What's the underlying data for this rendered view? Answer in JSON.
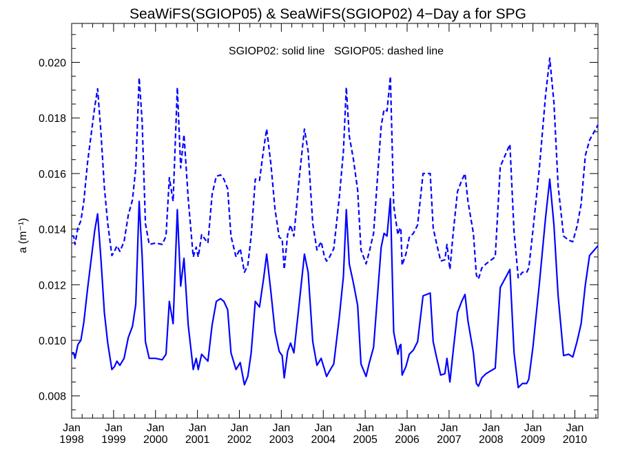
{
  "chart_data": {
    "type": "line",
    "title": "SeaWiFS(SGIOP05) & SeaWiFS(SGIOP02) 4−Day a for SPG",
    "ylabel": "a (m⁻¹)",
    "annotation": "SGIOP02: solid line   SGIOP05: dashed line",
    "xlim": [
      1998.0,
      2010.55
    ],
    "ylim": [
      0.0072,
      0.0214
    ],
    "y_ticks": [
      0.008,
      0.01,
      0.012,
      0.014,
      0.016,
      0.018,
      0.02
    ],
    "y_tick_labels": [
      "0.008",
      "0.010",
      "0.012",
      "0.014",
      "0.016",
      "0.018",
      "0.020"
    ],
    "x_ticks": [
      {
        "value": 1998,
        "month": "Jan",
        "year": "1998"
      },
      {
        "value": 1999,
        "month": "Jan",
        "year": "1999"
      },
      {
        "value": 2000,
        "month": "Jan",
        "year": "2000"
      },
      {
        "value": 2001,
        "month": "Jan",
        "year": "2001"
      },
      {
        "value": 2002,
        "month": "Jan",
        "year": "2002"
      },
      {
        "value": 2003,
        "month": "Jan",
        "year": "2003"
      },
      {
        "value": 2004,
        "month": "Jan",
        "year": "2004"
      },
      {
        "value": 2005,
        "month": "Jan",
        "year": "2005"
      },
      {
        "value": 2006,
        "month": "Jan",
        "year": "2006"
      },
      {
        "value": 2007,
        "month": "Jan",
        "year": "2007"
      },
      {
        "value": 2008,
        "month": "Jan",
        "year": "2008"
      },
      {
        "value": 2009,
        "month": "Jan",
        "year": "2009"
      },
      {
        "value": 2010,
        "month": "Jan",
        "year": "2010"
      }
    ],
    "colors": {
      "series": "#0000ff",
      "axes": "#000000"
    },
    "series": [
      {
        "name": "SGIOP02",
        "style": "solid",
        "points": [
          [
            1998.0,
            0.00955
          ],
          [
            1998.05,
            0.00955
          ],
          [
            1998.08,
            0.00935
          ],
          [
            1998.15,
            0.00985
          ],
          [
            1998.22,
            0.01
          ],
          [
            1998.29,
            0.01065
          ],
          [
            1998.38,
            0.01185
          ],
          [
            1998.55,
            0.01395
          ],
          [
            1998.62,
            0.01455
          ],
          [
            1998.7,
            0.0129
          ],
          [
            1998.78,
            0.011
          ],
          [
            1998.86,
            0.0099
          ],
          [
            1998.96,
            0.00895
          ],
          [
            1999.02,
            0.00905
          ],
          [
            1999.08,
            0.00925
          ],
          [
            1999.15,
            0.0091
          ],
          [
            1999.25,
            0.00935
          ],
          [
            1999.35,
            0.0101
          ],
          [
            1999.45,
            0.0105
          ],
          [
            1999.53,
            0.0113
          ],
          [
            1999.61,
            0.015
          ],
          [
            1999.68,
            0.01305
          ],
          [
            1999.76,
            0.00995
          ],
          [
            1999.85,
            0.00935
          ],
          [
            2000.0,
            0.00935
          ],
          [
            2000.16,
            0.0093
          ],
          [
            2000.25,
            0.0095
          ],
          [
            2000.33,
            0.0114
          ],
          [
            2000.42,
            0.0106
          ],
          [
            2000.52,
            0.0147
          ],
          [
            2000.6,
            0.01195
          ],
          [
            2000.68,
            0.01295
          ],
          [
            2000.78,
            0.01055
          ],
          [
            2000.9,
            0.00895
          ],
          [
            2000.97,
            0.00935
          ],
          [
            2001.02,
            0.00895
          ],
          [
            2001.1,
            0.0095
          ],
          [
            2001.25,
            0.00925
          ],
          [
            2001.35,
            0.01055
          ],
          [
            2001.45,
            0.0114
          ],
          [
            2001.55,
            0.0115
          ],
          [
            2001.63,
            0.0114
          ],
          [
            2001.72,
            0.0111
          ],
          [
            2001.8,
            0.00955
          ],
          [
            2001.92,
            0.00895
          ],
          [
            2002.02,
            0.0092
          ],
          [
            2002.12,
            0.0084
          ],
          [
            2002.2,
            0.0087
          ],
          [
            2002.28,
            0.00955
          ],
          [
            2002.38,
            0.0114
          ],
          [
            2002.48,
            0.0112
          ],
          [
            2002.58,
            0.01225
          ],
          [
            2002.65,
            0.0131
          ],
          [
            2002.75,
            0.01175
          ],
          [
            2002.85,
            0.0103
          ],
          [
            2002.95,
            0.0096
          ],
          [
            2003.02,
            0.00945
          ],
          [
            2003.07,
            0.00865
          ],
          [
            2003.15,
            0.0096
          ],
          [
            2003.22,
            0.0099
          ],
          [
            2003.3,
            0.00955
          ],
          [
            2003.42,
            0.01125
          ],
          [
            2003.55,
            0.0131
          ],
          [
            2003.64,
            0.01245
          ],
          [
            2003.75,
            0.00995
          ],
          [
            2003.85,
            0.0091
          ],
          [
            2003.95,
            0.00935
          ],
          [
            2004.03,
            0.00895
          ],
          [
            2004.08,
            0.0087
          ],
          [
            2004.15,
            0.0089
          ],
          [
            2004.25,
            0.00915
          ],
          [
            2004.38,
            0.0108
          ],
          [
            2004.48,
            0.0123
          ],
          [
            2004.55,
            0.0147
          ],
          [
            2004.62,
            0.01275
          ],
          [
            2004.72,
            0.01205
          ],
          [
            2004.82,
            0.01125
          ],
          [
            2004.9,
            0.00915
          ],
          [
            2005.02,
            0.0087
          ],
          [
            2005.1,
            0.0092
          ],
          [
            2005.2,
            0.00975
          ],
          [
            2005.3,
            0.01175
          ],
          [
            2005.38,
            0.01335
          ],
          [
            2005.45,
            0.01385
          ],
          [
            2005.52,
            0.01375
          ],
          [
            2005.6,
            0.0151
          ],
          [
            2005.68,
            0.0103
          ],
          [
            2005.78,
            0.0095
          ],
          [
            2005.82,
            0.0098
          ],
          [
            2005.85,
            0.00985
          ],
          [
            2005.88,
            0.00875
          ],
          [
            2005.97,
            0.00905
          ],
          [
            2006.05,
            0.0095
          ],
          [
            2006.15,
            0.00965
          ],
          [
            2006.25,
            0.00995
          ],
          [
            2006.38,
            0.0116
          ],
          [
            2006.55,
            0.0117
          ],
          [
            2006.62,
            0.00995
          ],
          [
            2006.7,
            0.0094
          ],
          [
            2006.8,
            0.00875
          ],
          [
            2006.9,
            0.0088
          ],
          [
            2006.95,
            0.00935
          ],
          [
            2007.02,
            0.0085
          ],
          [
            2007.1,
            0.00965
          ],
          [
            2007.2,
            0.011
          ],
          [
            2007.3,
            0.0114
          ],
          [
            2007.38,
            0.01165
          ],
          [
            2007.45,
            0.0107
          ],
          [
            2007.58,
            0.00955
          ],
          [
            2007.65,
            0.00845
          ],
          [
            2007.7,
            0.00835
          ],
          [
            2007.78,
            0.00865
          ],
          [
            2007.88,
            0.0088
          ],
          [
            2008.1,
            0.009
          ],
          [
            2008.22,
            0.0119
          ],
          [
            2008.45,
            0.01255
          ],
          [
            2008.55,
            0.00955
          ],
          [
            2008.65,
            0.0083
          ],
          [
            2008.75,
            0.00845
          ],
          [
            2008.85,
            0.00845
          ],
          [
            2008.9,
            0.0086
          ],
          [
            2009.0,
            0.00975
          ],
          [
            2009.15,
            0.012
          ],
          [
            2009.3,
            0.0144
          ],
          [
            2009.4,
            0.0158
          ],
          [
            2009.5,
            0.01415
          ],
          [
            2009.6,
            0.0116
          ],
          [
            2009.73,
            0.00945
          ],
          [
            2009.85,
            0.0095
          ],
          [
            2009.95,
            0.0094
          ],
          [
            2010.05,
            0.00995
          ],
          [
            2010.15,
            0.0106
          ],
          [
            2010.25,
            0.012
          ],
          [
            2010.35,
            0.01305
          ],
          [
            2010.55,
            0.0134
          ]
        ]
      },
      {
        "name": "SGIOP05",
        "style": "dashed",
        "points": [
          [
            1998.0,
            0.01375
          ],
          [
            1998.05,
            0.01375
          ],
          [
            1998.08,
            0.01345
          ],
          [
            1998.15,
            0.01405
          ],
          [
            1998.22,
            0.0143
          ],
          [
            1998.29,
            0.015
          ],
          [
            1998.38,
            0.0164
          ],
          [
            1998.55,
            0.0184
          ],
          [
            1998.62,
            0.01905
          ],
          [
            1998.7,
            0.01745
          ],
          [
            1998.78,
            0.0155
          ],
          [
            1998.86,
            0.0142
          ],
          [
            1998.96,
            0.01305
          ],
          [
            1999.02,
            0.0132
          ],
          [
            1999.08,
            0.0134
          ],
          [
            1999.15,
            0.0132
          ],
          [
            1999.25,
            0.01355
          ],
          [
            1999.35,
            0.0145
          ],
          [
            1999.45,
            0.01505
          ],
          [
            1999.53,
            0.0162
          ],
          [
            1999.61,
            0.01945
          ],
          [
            1999.68,
            0.0179
          ],
          [
            1999.76,
            0.0142
          ],
          [
            1999.85,
            0.01345
          ],
          [
            2000.0,
            0.0135
          ],
          [
            2000.16,
            0.01345
          ],
          [
            2000.25,
            0.01375
          ],
          [
            2000.33,
            0.01585
          ],
          [
            2000.42,
            0.015
          ],
          [
            2000.52,
            0.0191
          ],
          [
            2000.6,
            0.0162
          ],
          [
            2000.68,
            0.0174
          ],
          [
            2000.78,
            0.0151
          ],
          [
            2000.9,
            0.013
          ],
          [
            2000.97,
            0.01335
          ],
          [
            2001.02,
            0.013
          ],
          [
            2001.1,
            0.0138
          ],
          [
            2001.25,
            0.0135
          ],
          [
            2001.35,
            0.01525
          ],
          [
            2001.45,
            0.0159
          ],
          [
            2001.55,
            0.01595
          ],
          [
            2001.63,
            0.0158
          ],
          [
            2001.72,
            0.01545
          ],
          [
            2001.8,
            0.01375
          ],
          [
            2001.92,
            0.013
          ],
          [
            2002.02,
            0.0133
          ],
          [
            2002.12,
            0.01245
          ],
          [
            2002.2,
            0.0127
          ],
          [
            2002.28,
            0.01375
          ],
          [
            2002.38,
            0.0158
          ],
          [
            2002.48,
            0.01575
          ],
          [
            2002.58,
            0.0169
          ],
          [
            2002.65,
            0.0176
          ],
          [
            2002.75,
            0.01635
          ],
          [
            2002.85,
            0.0147
          ],
          [
            2002.95,
            0.0137
          ],
          [
            2003.02,
            0.01365
          ],
          [
            2003.07,
            0.01255
          ],
          [
            2003.15,
            0.0138
          ],
          [
            2003.22,
            0.01415
          ],
          [
            2003.3,
            0.01375
          ],
          [
            2003.42,
            0.01575
          ],
          [
            2003.55,
            0.0176
          ],
          [
            2003.64,
            0.0168
          ],
          [
            2003.75,
            0.0142
          ],
          [
            2003.85,
            0.01325
          ],
          [
            2003.95,
            0.01355
          ],
          [
            2004.03,
            0.013
          ],
          [
            2004.08,
            0.01285
          ],
          [
            2004.15,
            0.013
          ],
          [
            2004.25,
            0.0133
          ],
          [
            2004.38,
            0.0151
          ],
          [
            2004.48,
            0.0168
          ],
          [
            2004.55,
            0.0191
          ],
          [
            2004.62,
            0.01735
          ],
          [
            2004.72,
            0.0165
          ],
          [
            2004.82,
            0.0154
          ],
          [
            2004.9,
            0.01325
          ],
          [
            2005.02,
            0.01275
          ],
          [
            2005.1,
            0.0132
          ],
          [
            2005.2,
            0.01385
          ],
          [
            2005.3,
            0.016
          ],
          [
            2005.38,
            0.0177
          ],
          [
            2005.45,
            0.0183
          ],
          [
            2005.52,
            0.01825
          ],
          [
            2005.6,
            0.0195
          ],
          [
            2005.68,
            0.01485
          ],
          [
            2005.78,
            0.0138
          ],
          [
            2005.82,
            0.014
          ],
          [
            2005.85,
            0.01405
          ],
          [
            2005.88,
            0.0127
          ],
          [
            2005.97,
            0.0131
          ],
          [
            2006.05,
            0.0137
          ],
          [
            2006.15,
            0.01385
          ],
          [
            2006.25,
            0.01415
          ],
          [
            2006.38,
            0.016
          ],
          [
            2006.55,
            0.016
          ],
          [
            2006.62,
            0.01405
          ],
          [
            2006.7,
            0.0135
          ],
          [
            2006.8,
            0.01285
          ],
          [
            2006.9,
            0.0129
          ],
          [
            2006.95,
            0.01345
          ],
          [
            2007.02,
            0.01255
          ],
          [
            2007.1,
            0.0139
          ],
          [
            2007.2,
            0.01535
          ],
          [
            2007.3,
            0.01575
          ],
          [
            2007.38,
            0.016
          ],
          [
            2007.45,
            0.015
          ],
          [
            2007.58,
            0.01385
          ],
          [
            2007.65,
            0.01235
          ],
          [
            2007.7,
            0.0122
          ],
          [
            2007.78,
            0.0126
          ],
          [
            2007.88,
            0.01275
          ],
          [
            2008.1,
            0.013
          ],
          [
            2008.22,
            0.01625
          ],
          [
            2008.45,
            0.01705
          ],
          [
            2008.55,
            0.0139
          ],
          [
            2008.65,
            0.01225
          ],
          [
            2008.75,
            0.01245
          ],
          [
            2008.85,
            0.01245
          ],
          [
            2008.9,
            0.0126
          ],
          [
            2009.0,
            0.01395
          ],
          [
            2009.15,
            0.01615
          ],
          [
            2009.3,
            0.0188
          ],
          [
            2009.4,
            0.02015
          ],
          [
            2009.5,
            0.01855
          ],
          [
            2009.6,
            0.01555
          ],
          [
            2009.73,
            0.01375
          ],
          [
            2009.85,
            0.0136
          ],
          [
            2009.95,
            0.01355
          ],
          [
            2010.05,
            0.0141
          ],
          [
            2010.15,
            0.0149
          ],
          [
            2010.25,
            0.01665
          ],
          [
            2010.35,
            0.0172
          ],
          [
            2010.55,
            0.01775
          ]
        ]
      }
    ]
  }
}
